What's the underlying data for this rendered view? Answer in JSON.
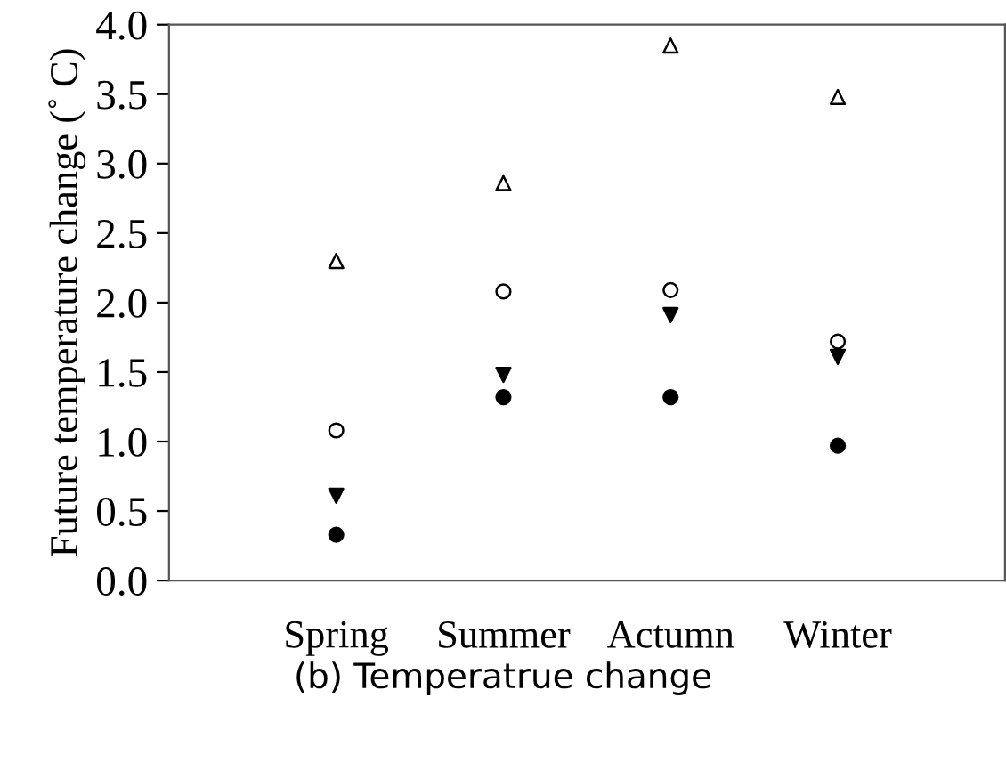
{
  "chart_data": {
    "type": "scatter",
    "ylabel": "Future temperature change (˚ C)",
    "categories": [
      "Spring",
      "Summer",
      "Actumn",
      "Winter"
    ],
    "series": [
      {
        "color": "#ffffff",
        "marker": "triangle",
        "values": [
          2.3,
          2.86,
          3.85,
          3.48
        ]
      },
      {
        "color": "#ffffff",
        "marker": "circle",
        "values": [
          1.08,
          2.08,
          2.09,
          1.72
        ]
      },
      {
        "color": "#000000",
        "marker": "triangle_down",
        "values": [
          0.61,
          1.48,
          1.91,
          1.61
        ]
      },
      {
        "color": "#000000",
        "marker": "circle",
        "values": [
          0.33,
          1.32,
          1.32,
          0.97
        ]
      }
    ],
    "ylim": [
      0,
      4
    ],
    "yticks": [
      {
        "value": 0,
        "label": "0.0"
      },
      {
        "value": 0.5,
        "label": "0.5"
      },
      {
        "value": 1,
        "label": "1.0"
      },
      {
        "value": 1.5,
        "label": "1.5"
      },
      {
        "value": 2,
        "label": "2.0"
      },
      {
        "value": 2.5,
        "label": "2.5"
      },
      {
        "value": 3,
        "label": "3.0"
      },
      {
        "value": 3.5,
        "label": "3.5"
      },
      {
        "value": 4,
        "label": "4.0"
      }
    ],
    "grid": false,
    "legend": false,
    "annotations": [
      "(b) Temperatrue change"
    ]
  }
}
